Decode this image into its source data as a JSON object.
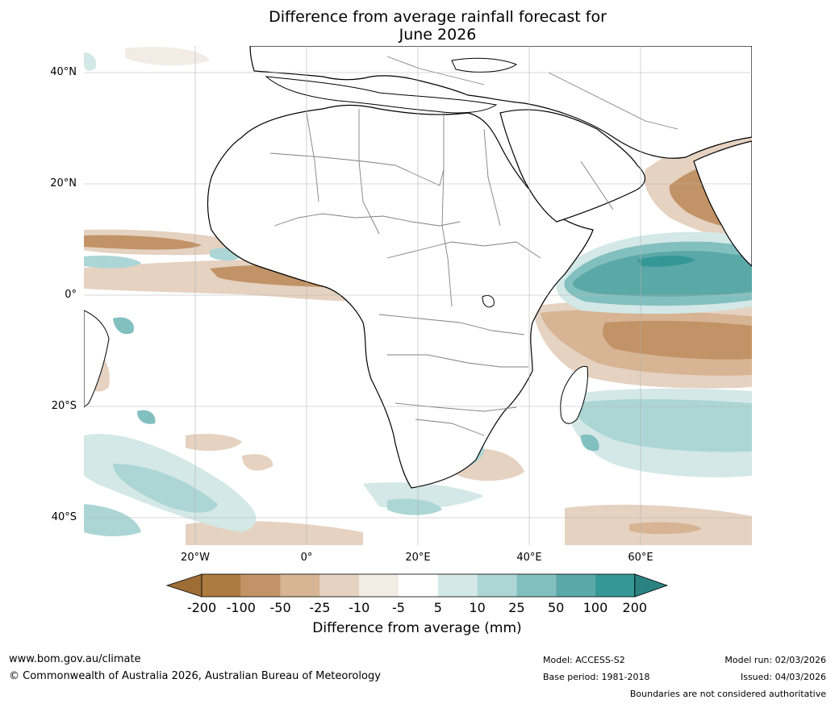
{
  "title": {
    "line1": "Difference from average rainfall forecast for",
    "line2": "June 2026"
  },
  "map": {
    "lat_labels": [
      "40°N",
      "20°N",
      "0°",
      "20°S",
      "40°S"
    ],
    "lon_labels": [
      "20°W",
      "0°",
      "20°E",
      "40°E",
      "60°E"
    ],
    "land_color": "#ffffff",
    "border_color": "#808080",
    "coast_color": "#000000"
  },
  "colorbar": {
    "label": "Difference from average (mm)",
    "ticks": [
      "-200",
      "-100",
      "-50",
      "-25",
      "-10",
      "-5",
      "5",
      "10",
      "25",
      "50",
      "100",
      "200"
    ],
    "colors": [
      "#9e6d36",
      "#ad7a40",
      "#c29367",
      "#d6b494",
      "#e5d2c1",
      "#f2ece5",
      "#ffffff",
      "#d3e8e7",
      "#acd6d5",
      "#82c0bf",
      "#5aa8a7",
      "#359896",
      "#2a8381"
    ]
  },
  "footer": {
    "website": "www.bom.gov.au/climate",
    "copyright": "© Commonwealth of Australia 2026, Australian Bureau of Meteorology",
    "model": "Model: ACCESS-S2",
    "base_period": "Base period: 1981-2018",
    "model_run": "Model run: 02/03/2026",
    "issued": "Issued: 04/03/2026",
    "disclaimer": "Boundaries are not considered authoritative"
  }
}
